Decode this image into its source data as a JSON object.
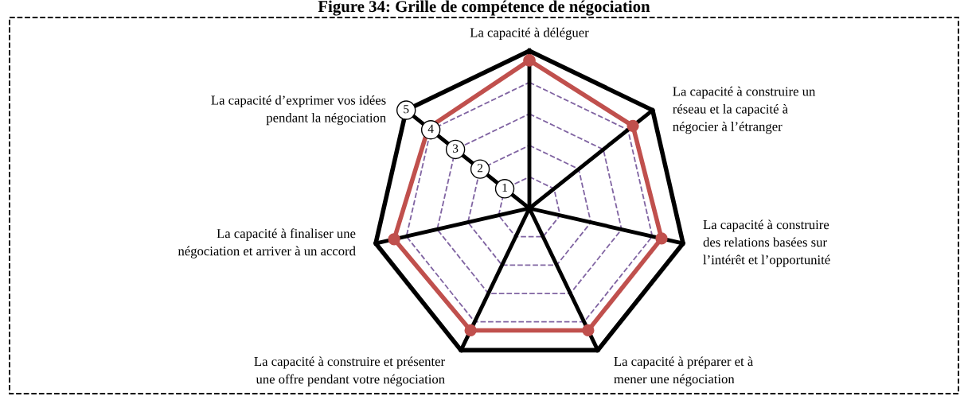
{
  "chart_data": {
    "type": "radar",
    "title": "Figure 34: Grille de compétence de négociation",
    "categories": [
      "La capacité à déléguer",
      "La capacité à construire un\nréseau et la capacité à\nnégocier à l’étranger",
      "La capacité à construire\ndes relations basées sur\nl’intérêt et l’opportunité",
      "La capacité à préparer et à\nmener une négociation",
      "La capacité à construire et présenter\nune offre pendant votre négociation",
      "La capacité à finaliser une\nnégociation et arriver à un accord",
      "La capacité d’exprimer vos idées\npendant la négociation"
    ],
    "series": [
      {
        "color": "#c0504d",
        "values": [
          4.7,
          4.2,
          4.3,
          4.3,
          4.3,
          4.4,
          4.1
        ]
      }
    ],
    "ylim": [
      0,
      5
    ],
    "yticks": [
      1,
      2,
      3,
      4,
      5
    ],
    "marker": "circle",
    "line_style": "solid",
    "grid": true
  }
}
